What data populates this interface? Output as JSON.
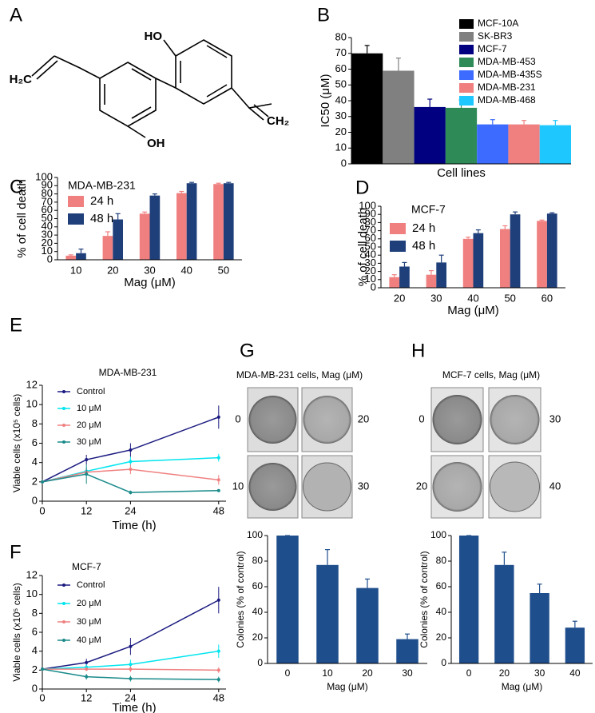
{
  "structure": {
    "panel": "A",
    "labels": [
      "HO",
      "OH",
      "H₂C",
      "CH₂"
    ]
  },
  "colony_images": [
    {
      "panel": "G",
      "title": "MDA-MB-231 cells, Mag (μM)",
      "labels": [
        "0",
        "20",
        "10",
        "30"
      ]
    },
    {
      "panel": "H",
      "title": "MCF-7 cells, Mag (μM)",
      "labels": [
        "0",
        "30",
        "20",
        "40"
      ]
    }
  ],
  "chart_data": [
    {
      "type": "bar",
      "panel": "B",
      "ylabel": "IC50 (μM)",
      "xlabel": "Cell lines",
      "categories": [
        null
      ],
      "series": [
        {
          "name": "MCF-10A",
          "color": "#000000",
          "values": [
            70
          ],
          "errors": [
            5
          ]
        },
        {
          "name": "SK-BR3",
          "color": "#808080",
          "values": [
            59
          ],
          "errors": [
            8
          ]
        },
        {
          "name": "MCF-7",
          "color": "#000080",
          "values": [
            36
          ],
          "errors": [
            5
          ]
        },
        {
          "name": "MDA-MB-453",
          "color": "#2e8b57",
          "values": [
            35.5
          ],
          "errors": [
            5
          ]
        },
        {
          "name": "MDA-MB-435S",
          "color": "#3d6bff",
          "values": [
            25
          ],
          "errors": [
            3
          ]
        },
        {
          "name": "MDA-MB-231",
          "color": "#f08080",
          "values": [
            25
          ],
          "errors": [
            2.5
          ]
        },
        {
          "name": "MDA-MB-468",
          "color": "#1ec8ff",
          "values": [
            24.5
          ],
          "errors": [
            3
          ]
        }
      ],
      "ylim": [
        0,
        80
      ],
      "yticks": [
        0,
        10,
        20,
        30,
        40,
        50,
        60,
        70,
        80
      ]
    },
    {
      "type": "bar",
      "panel": "C",
      "title": "MDA-MB-231",
      "ylabel": "% of cell death",
      "xlabel": "Mag (μM)",
      "categories": [
        "10",
        "20",
        "30",
        "40",
        "50"
      ],
      "series": [
        {
          "name": "24 h",
          "color": "#f08080",
          "values": [
            5,
            29,
            56,
            81,
            92
          ],
          "errors": [
            1,
            5,
            2,
            2,
            1
          ]
        },
        {
          "name": "48 h",
          "color": "#1f3f7a",
          "values": [
            8,
            49,
            78,
            93,
            93
          ],
          "errors": [
            5,
            7,
            2,
            1,
            1
          ]
        }
      ],
      "ylim": [
        0,
        100
      ],
      "yticks": [
        0,
        10,
        20,
        30,
        40,
        50,
        60,
        70,
        80,
        90,
        100
      ]
    },
    {
      "type": "bar",
      "panel": "D",
      "title": "MCF-7",
      "ylabel": "% of cell death",
      "xlabel": "Mag (μM)",
      "categories": [
        "20",
        "30",
        "40",
        "50",
        "60"
      ],
      "series": [
        {
          "name": "24 h",
          "color": "#f08080",
          "values": [
            13,
            16,
            60,
            72,
            82
          ],
          "errors": [
            3,
            5,
            2,
            4,
            1
          ]
        },
        {
          "name": "48 h",
          "color": "#1f3f7a",
          "values": [
            26,
            31,
            67,
            90,
            91
          ],
          "errors": [
            5,
            9,
            4,
            3,
            1
          ]
        }
      ],
      "ylim": [
        0,
        100
      ],
      "yticks": [
        0,
        10,
        20,
        30,
        40,
        50,
        60,
        70,
        80,
        90,
        100
      ]
    },
    {
      "type": "line",
      "panel": "E",
      "title": "MDA-MB-231",
      "ylabel": "Viable cells (x10⁵ cells)",
      "xlabel": "Time (h)",
      "x": [
        0,
        12,
        24,
        48
      ],
      "series": [
        {
          "name": "Control",
          "color": "#1a1a80",
          "values": [
            2,
            4.3,
            5.3,
            8.7
          ],
          "errors": [
            0.2,
            0.5,
            0.7,
            1.2
          ]
        },
        {
          "name": "10 μM",
          "color": "#00e5ee",
          "values": [
            2,
            3.1,
            4.1,
            4.5
          ],
          "errors": [
            0.2,
            0.4,
            0.5,
            0.4
          ]
        },
        {
          "name": "20 μM",
          "color": "#f08080",
          "values": [
            2,
            3.0,
            3.3,
            2.2
          ],
          "errors": [
            0.2,
            0.4,
            0.5,
            0.5
          ]
        },
        {
          "name": "30 μM",
          "color": "#1a8a8a",
          "values": [
            2,
            2.8,
            0.9,
            1.1
          ],
          "errors": [
            0.2,
            1.0,
            0.2,
            0.1
          ]
        }
      ],
      "xlim": [
        0,
        50
      ],
      "xticks": [
        0,
        12,
        24,
        48
      ],
      "ylim": [
        0,
        12
      ],
      "yticks": [
        0,
        2,
        4,
        6,
        8,
        10,
        12
      ]
    },
    {
      "type": "line",
      "panel": "F",
      "title": "MCF-7",
      "ylabel": "Viable cells (x10⁵ cells)",
      "xlabel": "Time (h)",
      "x": [
        0,
        12,
        24,
        48
      ],
      "series": [
        {
          "name": "Control",
          "color": "#1a1a80",
          "values": [
            2.1,
            2.8,
            4.5,
            9.4
          ],
          "errors": [
            0.1,
            0.4,
            0.9,
            1.4
          ]
        },
        {
          "name": "20 μM",
          "color": "#00e5ee",
          "values": [
            2.1,
            2.3,
            2.6,
            4.0
          ],
          "errors": [
            0.1,
            0.3,
            0.5,
            0.7
          ]
        },
        {
          "name": "30 μM",
          "color": "#f08080",
          "values": [
            2.1,
            2.1,
            2.1,
            2.0
          ],
          "errors": [
            0.1,
            0.2,
            0.3,
            0.3
          ]
        },
        {
          "name": "40 μM",
          "color": "#1a8a8a",
          "values": [
            2.1,
            1.3,
            1.1,
            1.0
          ],
          "errors": [
            0.1,
            0.3,
            0.3,
            0.3
          ]
        }
      ],
      "xlim": [
        0,
        50
      ],
      "xticks": [
        0,
        12,
        24,
        48
      ],
      "ylim": [
        0,
        12
      ],
      "yticks": [
        0,
        2,
        4,
        6,
        8,
        10,
        12
      ]
    },
    {
      "type": "bar",
      "ylabel": "Colonies (% of control)",
      "xlabel": "Mag (μM)",
      "categories": [
        "0",
        "10",
        "20",
        "30"
      ],
      "series": [
        {
          "color": "#1f4e8c",
          "values": [
            100,
            77,
            59,
            19
          ],
          "errors": [
            0,
            12,
            7,
            4
          ]
        }
      ],
      "ylim": [
        0,
        100
      ],
      "yticks": [
        0,
        20,
        40,
        60,
        80,
        100
      ]
    },
    {
      "type": "bar",
      "ylabel": "Colonies (% of control)",
      "xlabel": "Mag (μM)",
      "categories": [
        "0",
        "20",
        "30",
        "40"
      ],
      "series": [
        {
          "color": "#1f4e8c",
          "values": [
            100,
            77,
            55,
            28
          ],
          "errors": [
            0,
            10,
            7,
            5
          ]
        }
      ],
      "ylim": [
        0,
        100
      ],
      "yticks": [
        0,
        20,
        40,
        60,
        80,
        100
      ]
    }
  ]
}
